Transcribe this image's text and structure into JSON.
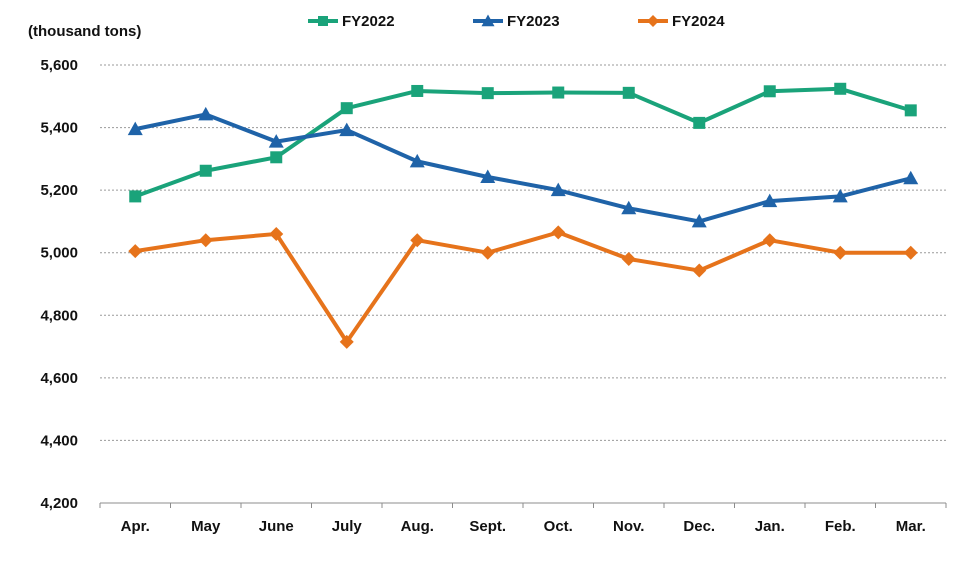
{
  "chart_data": {
    "type": "line",
    "unit_label": "(thousand tons)",
    "categories": [
      "Apr.",
      "May",
      "June",
      "July",
      "Aug.",
      "Sept.",
      "Oct.",
      "Nov.",
      "Dec.",
      "Jan.",
      "Feb.",
      "Mar."
    ],
    "ylim": [
      4200,
      5600
    ],
    "yticks": [
      4200,
      4400,
      4600,
      4800,
      5000,
      5200,
      5400,
      5600
    ],
    "ytick_labels": [
      "4,200",
      "4,400",
      "4,600",
      "4,800",
      "5,000",
      "5,200",
      "5,400",
      "5,600"
    ],
    "grid": true,
    "legend_position": "top",
    "series": [
      {
        "name": "FY2022",
        "color": "#1aa37a",
        "marker": "square",
        "values": [
          5180,
          5262,
          5305,
          5462,
          5517,
          5510,
          5512,
          5511,
          5415,
          5516,
          5524,
          5455
        ]
      },
      {
        "name": "FY2023",
        "color": "#1f63a8",
        "marker": "triangle",
        "values": [
          5395,
          5442,
          5355,
          5392,
          5292,
          5242,
          5200,
          5142,
          5100,
          5165,
          5180,
          5238
        ]
      },
      {
        "name": "FY2024",
        "color": "#e6731b",
        "marker": "diamond",
        "values": [
          5005,
          5040,
          5060,
          4715,
          5040,
          5000,
          5065,
          4980,
          4943,
          5040,
          5000,
          5000
        ]
      }
    ]
  }
}
